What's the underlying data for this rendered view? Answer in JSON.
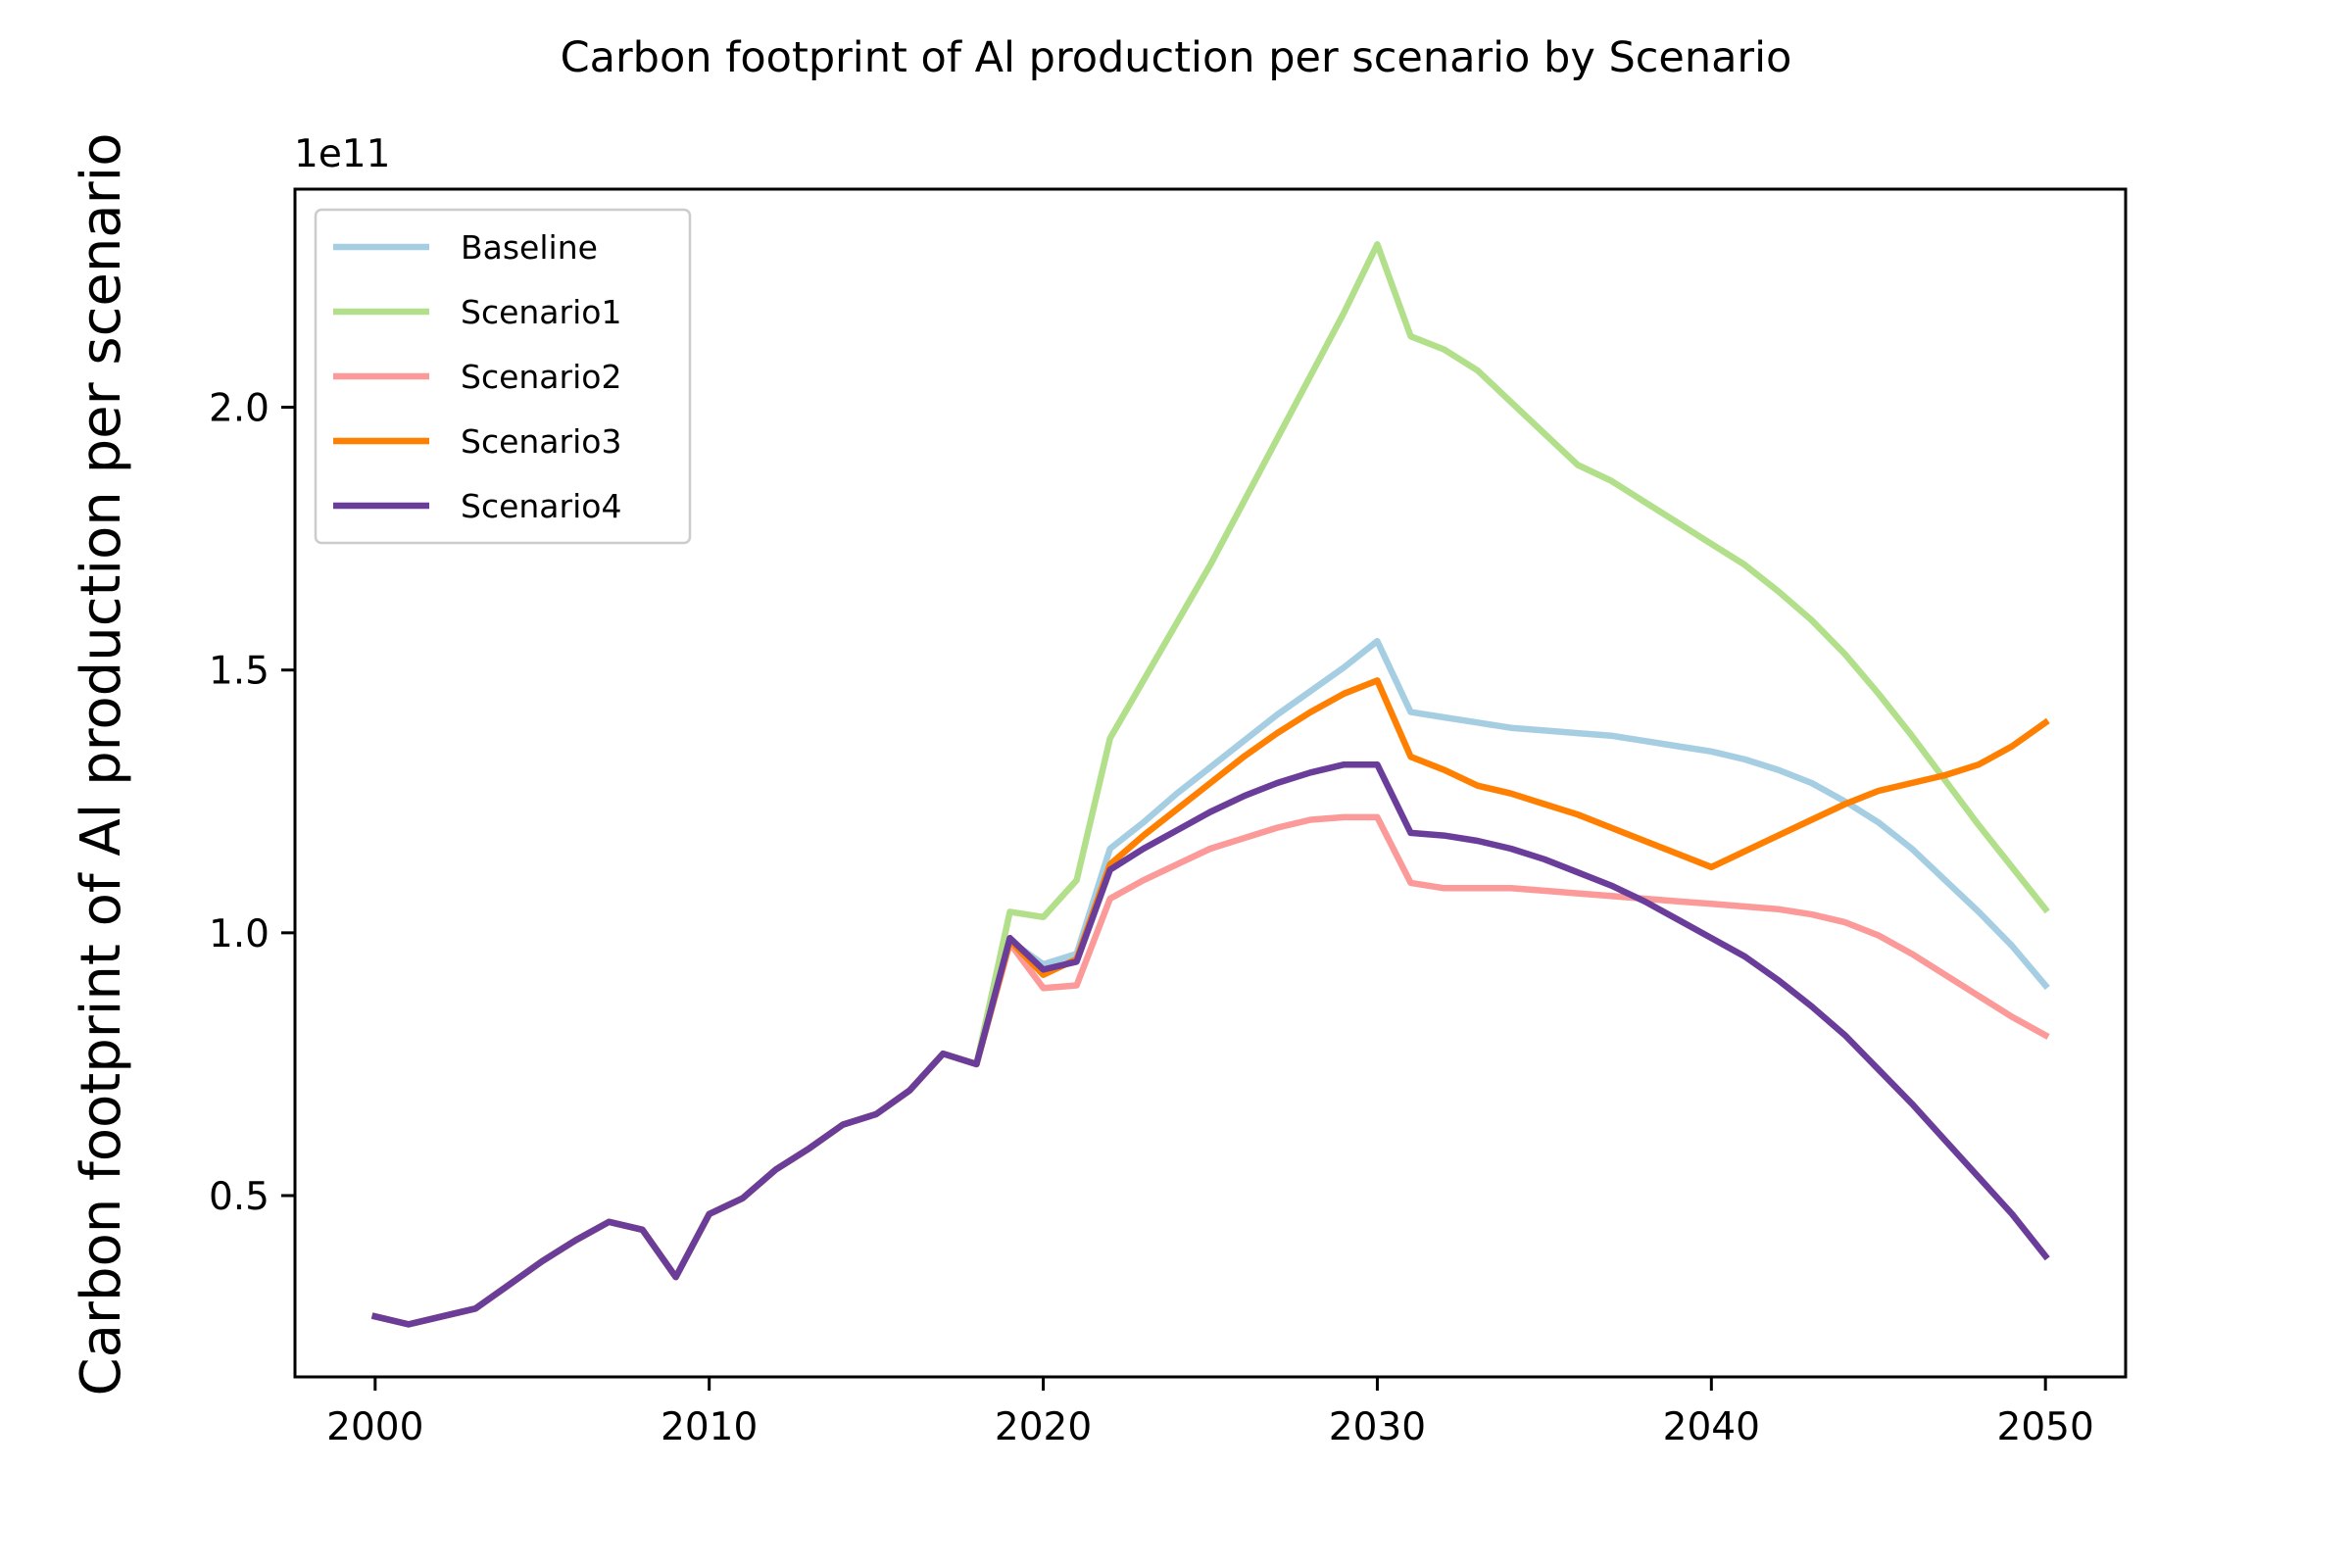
{
  "chart_data": {
    "type": "line",
    "title": "Carbon footprint of Al production per scenario by Scenario",
    "xlabel": "",
    "ylabel": "Carbon footprint of Al production per scenario",
    "y_offset_label": "1e11",
    "xlim": [
      1997.6,
      2052.4
    ],
    "ylim": [
      0.155,
      2.415
    ],
    "x_ticks": [
      2000,
      2010,
      2020,
      2030,
      2040,
      2050
    ],
    "x_tick_labels": [
      "2000",
      "2010",
      "2020",
      "2030",
      "2040",
      "2050"
    ],
    "y_ticks": [
      0.5,
      1.0,
      1.5,
      2.0
    ],
    "y_tick_labels": [
      "0.5",
      "1.0",
      "1.5",
      "2.0"
    ],
    "grid": false,
    "legend_position": "upper-left",
    "y_units_note": "values in units of 1e11",
    "x": [
      2000,
      2001,
      2002,
      2003,
      2004,
      2005,
      2006,
      2007,
      2008,
      2009,
      2010,
      2011,
      2012,
      2013,
      2014,
      2015,
      2016,
      2017,
      2018,
      2019,
      2020,
      2021,
      2022,
      2023,
      2024,
      2025,
      2026,
      2027,
      2028,
      2029,
      2030,
      2031,
      2032,
      2033,
      2034,
      2035,
      2036,
      2037,
      2038,
      2039,
      2040,
      2041,
      2042,
      2043,
      2044,
      2045,
      2046,
      2047,
      2048,
      2049,
      2050
    ],
    "series": [
      {
        "name": "Baseline",
        "color": "#a6cee3",
        "values": [
          0.27,
          0.255,
          0.27,
          0.285,
          0.33,
          0.375,
          0.415,
          0.45,
          0.435,
          0.345,
          0.465,
          0.495,
          0.55,
          0.59,
          0.635,
          0.655,
          0.7,
          0.77,
          0.75,
          0.985,
          0.94,
          0.96,
          1.16,
          1.21,
          1.265,
          1.315,
          1.365,
          1.415,
          1.46,
          1.505,
          1.555,
          1.42,
          1.41,
          1.4,
          1.39,
          1.385,
          1.38,
          1.375,
          1.365,
          1.355,
          1.345,
          1.33,
          1.31,
          1.285,
          1.25,
          1.21,
          1.16,
          1.1,
          1.04,
          0.975,
          0.9
        ]
      },
      {
        "name": "Scenario1",
        "color": "#b2df8a",
        "values": [
          0.27,
          0.255,
          0.27,
          0.285,
          0.33,
          0.375,
          0.415,
          0.45,
          0.435,
          0.345,
          0.465,
          0.495,
          0.55,
          0.59,
          0.635,
          0.655,
          0.7,
          0.77,
          0.75,
          1.04,
          1.03,
          1.1,
          1.37,
          1.48,
          1.59,
          1.7,
          1.82,
          1.94,
          2.06,
          2.18,
          2.31,
          2.135,
          2.11,
          2.07,
          2.01,
          1.95,
          1.89,
          1.86,
          1.82,
          1.78,
          1.74,
          1.7,
          1.65,
          1.595,
          1.53,
          1.455,
          1.375,
          1.29,
          1.205,
          1.125,
          1.045
        ]
      },
      {
        "name": "Scenario2",
        "color": "#fb9a99",
        "values": [
          0.27,
          0.255,
          0.27,
          0.285,
          0.33,
          0.375,
          0.415,
          0.45,
          0.435,
          0.345,
          0.465,
          0.495,
          0.55,
          0.59,
          0.635,
          0.655,
          0.7,
          0.77,
          0.75,
          0.98,
          0.895,
          0.9,
          1.065,
          1.1,
          1.13,
          1.16,
          1.18,
          1.2,
          1.215,
          1.22,
          1.22,
          1.095,
          1.085,
          1.085,
          1.085,
          1.08,
          1.075,
          1.07,
          1.065,
          1.06,
          1.055,
          1.05,
          1.045,
          1.035,
          1.02,
          0.995,
          0.96,
          0.92,
          0.88,
          0.84,
          0.805
        ]
      },
      {
        "name": "Scenario3",
        "color": "#ff7f00",
        "values": [
          0.27,
          0.255,
          0.27,
          0.285,
          0.33,
          0.375,
          0.415,
          0.45,
          0.435,
          0.345,
          0.465,
          0.495,
          0.55,
          0.59,
          0.635,
          0.655,
          0.7,
          0.77,
          0.75,
          0.985,
          0.92,
          0.95,
          1.13,
          1.185,
          1.235,
          1.285,
          1.335,
          1.38,
          1.42,
          1.455,
          1.48,
          1.335,
          1.31,
          1.28,
          1.265,
          1.245,
          1.225,
          1.2,
          1.175,
          1.15,
          1.125,
          1.155,
          1.185,
          1.215,
          1.245,
          1.27,
          1.285,
          1.3,
          1.32,
          1.355,
          1.4
        ]
      },
      {
        "name": "Scenario4",
        "color": "#6a3d9a",
        "values": [
          0.27,
          0.255,
          0.27,
          0.285,
          0.33,
          0.375,
          0.415,
          0.45,
          0.435,
          0.345,
          0.465,
          0.495,
          0.55,
          0.59,
          0.635,
          0.655,
          0.7,
          0.77,
          0.75,
          0.99,
          0.93,
          0.945,
          1.12,
          1.16,
          1.195,
          1.23,
          1.26,
          1.285,
          1.305,
          1.32,
          1.32,
          1.19,
          1.185,
          1.175,
          1.16,
          1.14,
          1.115,
          1.09,
          1.06,
          1.025,
          0.99,
          0.955,
          0.91,
          0.86,
          0.805,
          0.74,
          0.675,
          0.605,
          0.535,
          0.465,
          0.385
        ]
      }
    ]
  }
}
